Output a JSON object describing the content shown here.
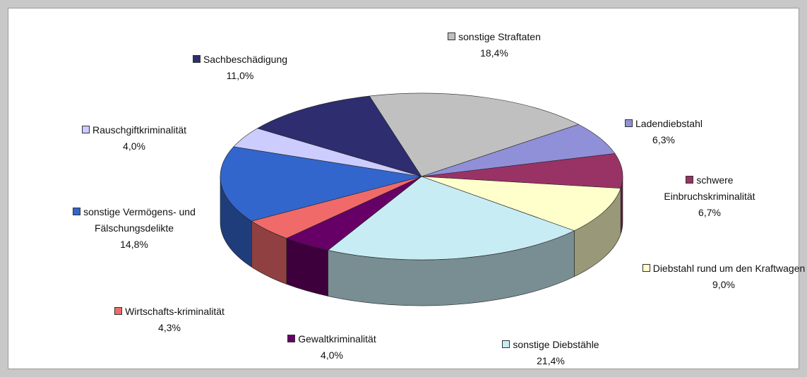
{
  "chart_data": {
    "type": "pie",
    "categories": [
      "sonstige Straftaten",
      "Ladendiebstahl",
      "schwere Einbruchskriminalität",
      "Diebstahl rund um den Kraftwagen",
      "sonstige Diebstähle",
      "Gewaltkriminalität",
      "Wirtschafts-kriminalität",
      "sonstige Vermögens- und Fälschungsdelikte",
      "Rauschgiftkriminalität",
      "Sachbeschädigung"
    ],
    "values": [
      18.4,
      6.3,
      6.7,
      9.0,
      21.4,
      4.0,
      4.3,
      14.8,
      4.0,
      11.0
    ],
    "value_labels": [
      "18,4%",
      "6,3%",
      "6,7%",
      "9,0%",
      "21,4%",
      "4,0%",
      "4,3%",
      "14,8%",
      "4,0%",
      "11,0%"
    ],
    "colors": [
      "#c0c0c0",
      "#9090d8",
      "#993366",
      "#ffffcc",
      "#c8ecf4",
      "#660066",
      "#f06a6a",
      "#3366cc",
      "#ccccff",
      "#2d2d70"
    ]
  }
}
